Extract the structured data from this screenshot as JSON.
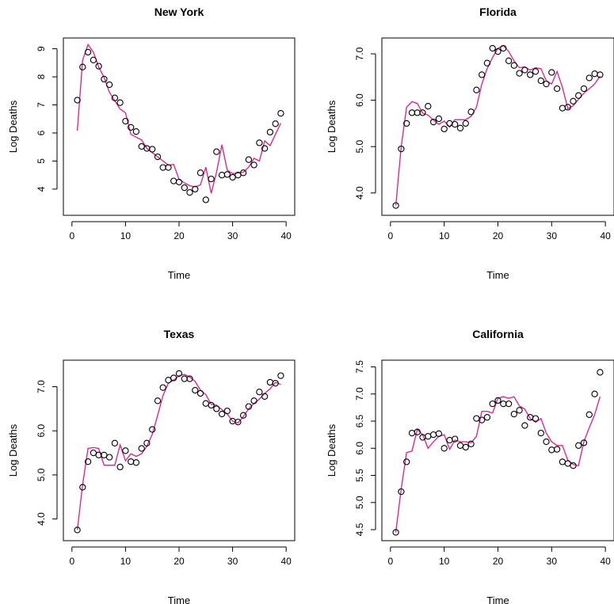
{
  "chart_data": [
    {
      "type": "scatter",
      "title": "New York",
      "xlabel": "Time",
      "ylabel": "Log Deaths",
      "xlim": [
        0,
        40
      ],
      "ylim": [
        3.3,
        9.15
      ],
      "xticks": [
        0,
        10,
        20,
        30,
        40
      ],
      "yticks": [
        4,
        5,
        6,
        7,
        8,
        9
      ],
      "ytick_labels": [
        "4",
        "5",
        "6",
        "7",
        "8",
        "9"
      ],
      "series": [
        {
          "style": "points",
          "x": [
            1,
            2,
            3,
            4,
            5,
            6,
            7,
            8,
            9,
            10,
            11,
            12,
            13,
            14,
            15,
            16,
            17,
            18,
            19,
            20,
            21,
            22,
            23,
            24,
            25,
            26,
            27,
            28,
            29,
            30,
            31,
            32,
            33,
            34,
            35,
            36,
            37,
            38,
            39
          ],
          "y": [
            7.17,
            8.35,
            8.88,
            8.6,
            8.38,
            7.92,
            7.72,
            7.25,
            7.08,
            6.42,
            6.2,
            6.05,
            5.52,
            5.45,
            5.42,
            5.15,
            4.77,
            4.77,
            4.29,
            4.25,
            4.05,
            3.88,
            4.0,
            4.58,
            3.62,
            4.36,
            5.33,
            4.5,
            4.52,
            4.42,
            4.5,
            4.58,
            5.05,
            4.86,
            5.65,
            5.45,
            6.03,
            6.33,
            6.7
          ]
        },
        {
          "style": "line",
          "color": "#e31a8c",
          "x": [
            1,
            2,
            3,
            4,
            5,
            6,
            7,
            8,
            9,
            10,
            11,
            12,
            13,
            14,
            15,
            16,
            17,
            18,
            19,
            20,
            21,
            22,
            23,
            24,
            25,
            26,
            27,
            28,
            29,
            30,
            31,
            32,
            33,
            34,
            35,
            36,
            37,
            38,
            39
          ],
          "y": [
            6.08,
            8.6,
            9.15,
            8.88,
            8.35,
            7.98,
            7.45,
            7.15,
            6.85,
            6.72,
            5.95,
            5.85,
            5.75,
            5.45,
            5.3,
            5.15,
            5.0,
            4.85,
            4.88,
            4.35,
            4.22,
            4.12,
            4.08,
            4.15,
            4.78,
            3.85,
            4.6,
            5.58,
            4.68,
            4.55,
            4.58,
            4.6,
            4.78,
            5.1,
            5.0,
            5.72,
            5.55,
            5.95,
            6.35
          ]
        }
      ]
    },
    {
      "type": "scatter",
      "title": "Florida",
      "xlabel": "Time",
      "ylabel": "Log Deaths",
      "xlim": [
        0,
        40
      ],
      "ylim": [
        3.66,
        7.2
      ],
      "xticks": [
        0,
        10,
        20,
        30,
        40
      ],
      "yticks": [
        4,
        5,
        6,
        7
      ],
      "ytick_labels": [
        "4.0",
        "5.0",
        "6.0",
        "7.0"
      ],
      "series": [
        {
          "style": "points",
          "x": [
            1,
            2,
            3,
            4,
            5,
            6,
            7,
            8,
            9,
            10,
            11,
            12,
            13,
            14,
            15,
            16,
            17,
            18,
            19,
            20,
            21,
            22,
            23,
            24,
            25,
            26,
            27,
            28,
            29,
            30,
            31,
            32,
            33,
            34,
            35,
            36,
            37,
            38,
            39
          ],
          "y": [
            3.73,
            4.95,
            5.5,
            5.73,
            5.73,
            5.73,
            5.87,
            5.53,
            5.6,
            5.38,
            5.5,
            5.48,
            5.4,
            5.5,
            5.75,
            6.22,
            6.55,
            6.8,
            7.12,
            7.05,
            7.12,
            6.85,
            6.75,
            6.58,
            6.65,
            6.55,
            6.62,
            6.42,
            6.35,
            6.6,
            6.25,
            5.83,
            5.85,
            5.98,
            6.1,
            6.25,
            6.48,
            6.57,
            6.55
          ]
        },
        {
          "style": "line",
          "color": "#e31a8c",
          "x": [
            1,
            2,
            3,
            4,
            5,
            6,
            7,
            8,
            9,
            10,
            11,
            12,
            13,
            14,
            15,
            16,
            17,
            18,
            19,
            20,
            21,
            22,
            23,
            24,
            25,
            26,
            27,
            28,
            29,
            30,
            31,
            32,
            33,
            34,
            35,
            36,
            37,
            38,
            39
          ],
          "y": [
            3.73,
            5.0,
            5.85,
            5.97,
            5.93,
            5.72,
            5.68,
            5.57,
            5.48,
            5.55,
            5.42,
            5.58,
            5.58,
            5.58,
            5.65,
            5.85,
            6.35,
            6.68,
            6.92,
            7.12,
            7.18,
            7.05,
            6.85,
            6.7,
            6.72,
            6.65,
            6.7,
            6.68,
            6.42,
            6.35,
            6.62,
            6.28,
            5.82,
            5.88,
            6.02,
            6.15,
            6.25,
            6.35,
            6.52
          ]
        }
      ]
    },
    {
      "type": "scatter",
      "title": "Texas",
      "xlabel": "Time",
      "ylabel": "Log Deaths",
      "xlim": [
        0,
        40
      ],
      "ylim": [
        3.66,
        7.45
      ],
      "xticks": [
        0,
        10,
        20,
        30,
        40
      ],
      "yticks": [
        4,
        5,
        6,
        7
      ],
      "ytick_labels": [
        "4.0",
        "5.0",
        "6.0",
        "7.0"
      ],
      "series": [
        {
          "style": "points",
          "x": [
            1,
            2,
            3,
            4,
            5,
            6,
            7,
            8,
            9,
            10,
            11,
            12,
            13,
            14,
            15,
            16,
            17,
            18,
            19,
            20,
            21,
            22,
            23,
            24,
            25,
            26,
            27,
            28,
            29,
            30,
            31,
            32,
            33,
            34,
            35,
            36,
            37,
            38,
            39
          ],
          "y": [
            3.75,
            4.72,
            5.3,
            5.5,
            5.45,
            5.45,
            5.4,
            5.72,
            5.18,
            5.55,
            5.3,
            5.28,
            5.6,
            5.72,
            6.03,
            6.68,
            6.98,
            7.15,
            7.2,
            7.3,
            7.18,
            7.18,
            6.92,
            6.85,
            6.62,
            6.58,
            6.5,
            6.38,
            6.45,
            6.22,
            6.2,
            6.35,
            6.55,
            6.68,
            6.88,
            6.78,
            7.1,
            7.08,
            7.25
          ]
        },
        {
          "style": "line",
          "color": "#e31a8c",
          "x": [
            1,
            2,
            3,
            4,
            5,
            6,
            7,
            8,
            9,
            10,
            11,
            12,
            13,
            14,
            15,
            16,
            17,
            18,
            19,
            20,
            21,
            22,
            23,
            24,
            25,
            26,
            27,
            28,
            29,
            30,
            31,
            32,
            33,
            34,
            35,
            36,
            37,
            38,
            39
          ],
          "y": [
            3.75,
            4.78,
            5.6,
            5.62,
            5.6,
            5.22,
            5.22,
            5.22,
            5.68,
            5.32,
            5.48,
            5.42,
            5.48,
            5.65,
            5.92,
            6.35,
            6.8,
            7.08,
            7.15,
            7.25,
            7.28,
            7.22,
            7.12,
            6.92,
            6.82,
            6.6,
            6.58,
            6.48,
            6.38,
            6.22,
            6.18,
            6.32,
            6.5,
            6.62,
            6.72,
            6.85,
            6.95,
            7.1,
            7.05
          ]
        }
      ]
    },
    {
      "type": "scatter",
      "title": "California",
      "xlabel": "Time",
      "ylabel": "Log Deaths",
      "xlim": [
        0,
        40
      ],
      "ylim": [
        4.42,
        7.5
      ],
      "xticks": [
        0,
        10,
        20,
        30,
        40
      ],
      "yticks": [
        4.5,
        5.0,
        5.5,
        6.0,
        6.5,
        7.0,
        7.5
      ],
      "ytick_labels": [
        "4.5",
        "5.0",
        "5.5",
        "6.0",
        "6.5",
        "7.0",
        "7.5"
      ],
      "series": [
        {
          "style": "points",
          "x": [
            1,
            2,
            3,
            4,
            5,
            6,
            7,
            8,
            9,
            10,
            11,
            12,
            13,
            14,
            15,
            16,
            17,
            18,
            19,
            20,
            21,
            22,
            23,
            24,
            25,
            26,
            27,
            28,
            29,
            30,
            31,
            32,
            33,
            34,
            35,
            36,
            37,
            38,
            39
          ],
          "y": [
            4.45,
            5.2,
            5.75,
            6.28,
            6.3,
            6.2,
            6.22,
            6.25,
            6.27,
            6.0,
            6.15,
            6.17,
            6.05,
            6.02,
            6.08,
            6.55,
            6.52,
            6.57,
            6.82,
            6.88,
            6.82,
            6.82,
            6.63,
            6.7,
            6.42,
            6.57,
            6.55,
            6.28,
            6.12,
            5.97,
            5.98,
            5.75,
            5.72,
            5.68,
            6.05,
            6.1,
            6.62,
            7.0,
            7.4
          ]
        },
        {
          "style": "line",
          "color": "#e31a8c",
          "x": [
            1,
            2,
            3,
            4,
            5,
            6,
            7,
            8,
            9,
            10,
            11,
            12,
            13,
            14,
            15,
            16,
            17,
            18,
            19,
            20,
            21,
            22,
            23,
            24,
            25,
            26,
            27,
            28,
            29,
            30,
            31,
            32,
            33,
            34,
            35,
            36,
            37,
            38,
            39
          ],
          "y": [
            4.45,
            5.25,
            5.92,
            5.95,
            6.35,
            6.25,
            6.0,
            6.12,
            6.22,
            6.25,
            5.98,
            6.15,
            6.12,
            6.12,
            6.1,
            6.22,
            6.68,
            6.68,
            6.65,
            6.92,
            6.95,
            6.92,
            6.95,
            6.78,
            6.72,
            6.55,
            6.48,
            6.55,
            6.28,
            6.12,
            6.05,
            6.05,
            5.78,
            5.7,
            5.68,
            6.12,
            6.38,
            6.62,
            6.95
          ]
        }
      ]
    }
  ]
}
